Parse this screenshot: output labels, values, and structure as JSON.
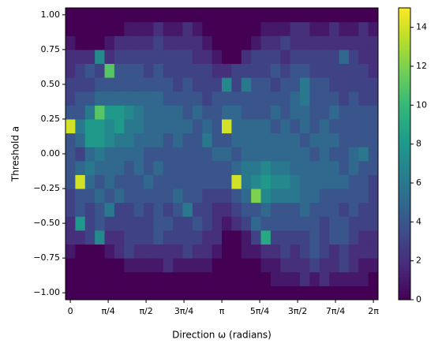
{
  "chart_data": {
    "type": "heatmap",
    "colormap": "viridis",
    "xlabel": "Direction ω (radians)",
    "ylabel": "Threshold a",
    "xlim": [
      -0.1,
      6.38
    ],
    "ylim": [
      -1.05,
      1.05
    ],
    "clim": [
      0,
      15
    ],
    "xticks": [
      0,
      {
        "value": 0.7853981634,
        "label": "π/4"
      },
      {
        "value": 1.5707963268,
        "label": "π/2"
      },
      {
        "value": 2.3561944902,
        "label": "3π/4"
      },
      {
        "value": 3.1415926536,
        "label": "π"
      },
      {
        "value": 3.926990817,
        "label": "5π/4"
      },
      {
        "value": 4.7123889804,
        "label": "3π/2"
      },
      {
        "value": 5.4977871438,
        "label": "7π/4"
      },
      {
        "value": 6.2831853072,
        "label": "2π"
      }
    ],
    "yticks": [
      {
        "value": -1,
        "label": "−1.00"
      },
      {
        "value": -0.75,
        "label": "−0.75"
      },
      {
        "value": -0.5,
        "label": "−0.50"
      },
      {
        "value": -0.25,
        "label": "−0.25"
      },
      {
        "value": 0,
        "label": "0.00"
      },
      {
        "value": 0.25,
        "label": "0.25"
      },
      {
        "value": 0.5,
        "label": "0.50"
      },
      {
        "value": 0.75,
        "label": "0.75"
      },
      {
        "value": 1,
        "label": "1.00"
      }
    ],
    "cticks": [
      0,
      2,
      4,
      6,
      8,
      10,
      12,
      14
    ],
    "xbins": [
      -0.1,
      0.1025,
      0.305,
      0.5075,
      0.71,
      0.9125,
      1.115,
      1.3175,
      1.52,
      1.7225,
      1.925,
      2.1275,
      2.33,
      2.5325,
      2.735,
      2.9375,
      3.14,
      3.3425,
      3.545,
      3.7475,
      3.95,
      4.1525,
      4.355,
      4.5575,
      4.76,
      4.9625,
      5.165,
      5.3675,
      5.57,
      5.7725,
      5.975,
      6.1775,
      6.38
    ],
    "ybins": [
      -1.05,
      -0.95,
      -0.85,
      -0.75,
      -0.65,
      -0.55,
      -0.45,
      -0.35,
      -0.25,
      -0.15,
      -0.05,
      0.05,
      0.15,
      0.25,
      0.35,
      0.45,
      0.55,
      0.65,
      0.75,
      0.85,
      0.95,
      1.05
    ],
    "z": [
      [
        0,
        0,
        0,
        0,
        0,
        0,
        0,
        0,
        0,
        0,
        0,
        0,
        0,
        0,
        0,
        0,
        0,
        0,
        0,
        0,
        0,
        0,
        0,
        0,
        0,
        0,
        0,
        0,
        0,
        0,
        0,
        0
      ],
      [
        0,
        0,
        0,
        0,
        0,
        0,
        0,
        0,
        0,
        0,
        0,
        0,
        0,
        0,
        0,
        0,
        0,
        0,
        0,
        0,
        0,
        1,
        1,
        1,
        2,
        1,
        2,
        1,
        1,
        1,
        1,
        0
      ],
      [
        0,
        0,
        0,
        0,
        0,
        0,
        1,
        1,
        1,
        1,
        2,
        1,
        1,
        1,
        1,
        0,
        0,
        0,
        0,
        0,
        1,
        1,
        2,
        2,
        2,
        3,
        2,
        2,
        3,
        2,
        1,
        1
      ],
      [
        1,
        0,
        0,
        0,
        1,
        2,
        3,
        2,
        2,
        2,
        2,
        2,
        3,
        2,
        2,
        1,
        0,
        0,
        1,
        1,
        2,
        2,
        3,
        2,
        3,
        4,
        3,
        2,
        3,
        2,
        2,
        2
      ],
      [
        2,
        2,
        3,
        7,
        2,
        2,
        3,
        3,
        3,
        4,
        3,
        3,
        3,
        3,
        2,
        2,
        0,
        0,
        1,
        3,
        9,
        3,
        3,
        3,
        3,
        4,
        3,
        4,
        4,
        3,
        2,
        2
      ],
      [
        2,
        8,
        3,
        4,
        3,
        3,
        3,
        3,
        3,
        4,
        4,
        3,
        3,
        4,
        3,
        2,
        1,
        2,
        3,
        5,
        4,
        4,
        4,
        4,
        4,
        4,
        3,
        4,
        4,
        3,
        3,
        3
      ],
      [
        3,
        4,
        3,
        4,
        6,
        3,
        3,
        4,
        3,
        4,
        3,
        4,
        6,
        3,
        3,
        2,
        2,
        3,
        4,
        4,
        5,
        4,
        4,
        4,
        5,
        4,
        4,
        4,
        3,
        4,
        3,
        3
      ],
      [
        3,
        4,
        4,
        5,
        4,
        5,
        4,
        4,
        4,
        4,
        4,
        5,
        4,
        4,
        3,
        3,
        3,
        4,
        5,
        12,
        7,
        6,
        6,
        6,
        5,
        5,
        4,
        4,
        4,
        4,
        4,
        3
      ],
      [
        4,
        14,
        5,
        4,
        5,
        4,
        4,
        4,
        5,
        4,
        4,
        4,
        4,
        4,
        4,
        4,
        4,
        14,
        6,
        7,
        8,
        7,
        7,
        6,
        5,
        5,
        5,
        5,
        5,
        4,
        4,
        3
      ],
      [
        4,
        5,
        6,
        5,
        5,
        5,
        4,
        5,
        4,
        5,
        4,
        4,
        4,
        4,
        4,
        4,
        4,
        5,
        6,
        6,
        7,
        6,
        6,
        5,
        5,
        5,
        5,
        5,
        4,
        5,
        4,
        4
      ],
      [
        4,
        3,
        5,
        6,
        5,
        5,
        5,
        5,
        4,
        4,
        4,
        4,
        4,
        4,
        4,
        5,
        5,
        4,
        5,
        5,
        5,
        5,
        5,
        5,
        5,
        4,
        5,
        4,
        4,
        5,
        6,
        4
      ],
      [
        4,
        5,
        8,
        8,
        7,
        6,
        6,
        5,
        5,
        5,
        4,
        5,
        4,
        4,
        6,
        4,
        4,
        5,
        5,
        5,
        5,
        5,
        5,
        5,
        4,
        5,
        5,
        5,
        4,
        4,
        4,
        4
      ],
      [
        14,
        6,
        8,
        8,
        7,
        8,
        6,
        6,
        5,
        5,
        5,
        5,
        5,
        4,
        5,
        4,
        14,
        5,
        5,
        5,
        5,
        4,
        5,
        4,
        5,
        4,
        5,
        4,
        4,
        4,
        4,
        4
      ],
      [
        4,
        4,
        6,
        11,
        8,
        8,
        7,
        6,
        5,
        5,
        5,
        5,
        4,
        5,
        4,
        4,
        5,
        5,
        4,
        4,
        4,
        5,
        4,
        5,
        5,
        4,
        4,
        5,
        4,
        4,
        4,
        4
      ],
      [
        3,
        4,
        4,
        5,
        5,
        5,
        5,
        5,
        5,
        5,
        4,
        4,
        4,
        4,
        3,
        4,
        4,
        4,
        4,
        4,
        4,
        4,
        4,
        5,
        6,
        4,
        4,
        4,
        3,
        4,
        3,
        3
      ],
      [
        3,
        3,
        3,
        4,
        4,
        4,
        4,
        4,
        4,
        4,
        4,
        3,
        4,
        3,
        3,
        3,
        7,
        3,
        6,
        4,
        4,
        3,
        4,
        4,
        6,
        4,
        4,
        3,
        3,
        3,
        3,
        3
      ],
      [
        2,
        3,
        4,
        3,
        11,
        4,
        4,
        4,
        3,
        4,
        3,
        3,
        3,
        3,
        3,
        2,
        2,
        3,
        3,
        3,
        3,
        4,
        3,
        4,
        4,
        3,
        3,
        3,
        3,
        3,
        3,
        2
      ],
      [
        2,
        2,
        2,
        7,
        2,
        3,
        3,
        3,
        3,
        3,
        3,
        3,
        3,
        2,
        2,
        1,
        0,
        0,
        2,
        3,
        3,
        3,
        2,
        3,
        3,
        3,
        3,
        3,
        5,
        3,
        2,
        2
      ],
      [
        1,
        0,
        0,
        0,
        1,
        2,
        2,
        2,
        2,
        3,
        2,
        2,
        2,
        2,
        1,
        0,
        0,
        0,
        0,
        1,
        2,
        2,
        3,
        2,
        2,
        2,
        2,
        2,
        2,
        2,
        2,
        2
      ],
      [
        0,
        0,
        0,
        0,
        0,
        0,
        1,
        1,
        1,
        2,
        1,
        1,
        2,
        1,
        0,
        0,
        0,
        0,
        0,
        0,
        1,
        1,
        1,
        2,
        2,
        1,
        1,
        2,
        1,
        1,
        2,
        1
      ],
      [
        0,
        0,
        0,
        0,
        0,
        0,
        0,
        0,
        0,
        0,
        0,
        0,
        0,
        0,
        0,
        0,
        0,
        0,
        0,
        0,
        0,
        0,
        0,
        0,
        0,
        0,
        0,
        0,
        0,
        0,
        0,
        0
      ]
    ]
  }
}
